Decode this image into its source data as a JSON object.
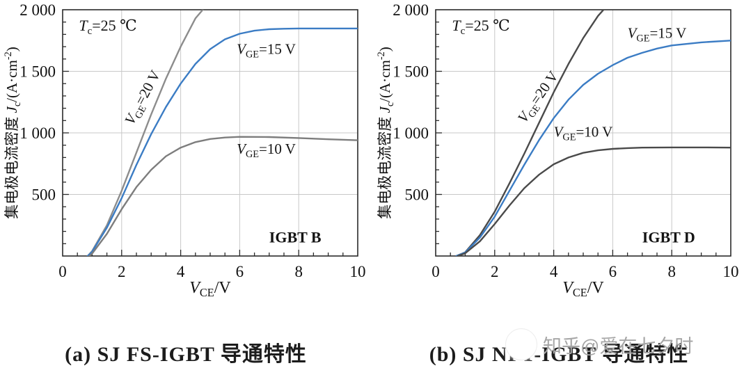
{
  "page": {
    "background": "#ffffff"
  },
  "watermark": {
    "text": "知乎@爱在七夕时",
    "icon": "zhihu-logo-circle",
    "text_color": "#a6a6a6"
  },
  "chart_data": [
    {
      "id": "a",
      "type": "line",
      "caption": "(a) SJ FS-IGBT 导通特性",
      "xlabel": "$V$_{CE}/V",
      "ylabel": "集电极电流密度 $J$_{c}/(A·cm^{-2})",
      "xlim": [
        0,
        10
      ],
      "ylim": [
        0,
        2000
      ],
      "x_ticks": {
        "values": [
          0,
          2,
          4,
          6,
          8,
          10
        ],
        "labels": [
          "0",
          "2",
          "4",
          "6",
          "8",
          "10"
        ]
      },
      "y_ticks": {
        "values": [
          500,
          1000,
          1500,
          2000
        ],
        "labels": [
          "500",
          "1 000",
          "1 500",
          "2 000"
        ]
      },
      "x_minor_step": 0.5,
      "y_minor_step": 100,
      "grid": true,
      "grid_color": "#c8c8c8",
      "frame_color": "#2a2a2a",
      "series": [
        {
          "key": "vge20",
          "name": "V_GE=20 V",
          "color": "#8c8c8c",
          "points": [
            [
              0.85,
              0
            ],
            [
              1.0,
              40
            ],
            [
              1.5,
              250
            ],
            [
              2.0,
              530
            ],
            [
              2.5,
              840
            ],
            [
              3.0,
              1150
            ],
            [
              3.5,
              1440
            ],
            [
              4.0,
              1700
            ],
            [
              4.5,
              1930
            ],
            [
              4.75,
              2000
            ],
            [
              4.9,
              2060
            ]
          ]
        },
        {
          "key": "vge15",
          "name": "V_GE=15 V",
          "color": "#3b7cc4",
          "points": [
            [
              0.85,
              0
            ],
            [
              1.0,
              35
            ],
            [
              1.5,
              230
            ],
            [
              2.0,
              470
            ],
            [
              2.5,
              740
            ],
            [
              3.0,
              990
            ],
            [
              3.5,
              1210
            ],
            [
              4.0,
              1400
            ],
            [
              4.5,
              1560
            ],
            [
              5.0,
              1680
            ],
            [
              5.5,
              1760
            ],
            [
              6.0,
              1805
            ],
            [
              6.5,
              1830
            ],
            [
              7.0,
              1842
            ],
            [
              7.5,
              1846
            ],
            [
              8.0,
              1848
            ],
            [
              9.0,
              1848
            ],
            [
              10.0,
              1848
            ]
          ]
        },
        {
          "key": "vge10",
          "name": "V_GE=10 V",
          "color": "#7d7d7d",
          "points": [
            [
              0.9,
              0
            ],
            [
              1.0,
              20
            ],
            [
              1.5,
              180
            ],
            [
              2.0,
              380
            ],
            [
              2.5,
              560
            ],
            [
              3.0,
              700
            ],
            [
              3.5,
              810
            ],
            [
              4.0,
              880
            ],
            [
              4.5,
              925
            ],
            [
              5.0,
              950
            ],
            [
              5.5,
              962
            ],
            [
              6.0,
              968
            ],
            [
              7.0,
              966
            ],
            [
              8.0,
              958
            ],
            [
              9.0,
              948
            ],
            [
              10.0,
              940
            ]
          ]
        }
      ],
      "annotations": [
        {
          "name": "temp-label",
          "text": "$T$_{c}=25 ℃",
          "x": 0.55,
          "y": 1830,
          "anchor": "start",
          "size": 22
        },
        {
          "name": "vge20-label",
          "text": "$V$_{GE}=20 V",
          "x": 2.85,
          "y": 1270,
          "anchor": "middle",
          "rotate": -62,
          "size": 21
        },
        {
          "name": "vge15-label",
          "text": "$V$_{GE}=15 V",
          "x": 5.9,
          "y": 1640,
          "anchor": "start",
          "size": 21
        },
        {
          "name": "vge10-label",
          "text": "$V$_{GE}=10 V",
          "x": 5.9,
          "y": 830,
          "anchor": "start",
          "size": 21
        },
        {
          "name": "device-label",
          "text": "IGBT B",
          "x": 7.0,
          "y": 110,
          "anchor": "start",
          "size": 22,
          "bold": true
        }
      ]
    },
    {
      "id": "b",
      "type": "line",
      "caption": "(b) SJ NPT-IGBT 导通特性",
      "xlabel": "$V$_{CE}/V",
      "ylabel": "集电极电流密度 $J$_{c}/(A·cm^{-2})",
      "xlim": [
        0,
        10
      ],
      "ylim": [
        0,
        2000
      ],
      "x_ticks": {
        "values": [
          0,
          2,
          4,
          6,
          8,
          10
        ],
        "labels": [
          "0",
          "2",
          "4",
          "6",
          "8",
          "10"
        ]
      },
      "y_ticks": {
        "values": [
          500,
          1000,
          1500,
          2000
        ],
        "labels": [
          "500",
          "1 000",
          "1 500",
          "2 000"
        ]
      },
      "x_minor_step": 0.5,
      "y_minor_step": 100,
      "grid": true,
      "grid_color": "#c8c8c8",
      "frame_color": "#2a2a2a",
      "series": [
        {
          "key": "vge20",
          "name": "V_GE=20 V",
          "color": "#4a4a4a",
          "points": [
            [
              0.7,
              0
            ],
            [
              1.0,
              30
            ],
            [
              1.5,
              170
            ],
            [
              2.0,
              360
            ],
            [
              2.5,
              590
            ],
            [
              3.0,
              830
            ],
            [
              3.5,
              1080
            ],
            [
              4.0,
              1330
            ],
            [
              4.5,
              1560
            ],
            [
              5.0,
              1770
            ],
            [
              5.5,
              1950
            ],
            [
              5.8,
              2030
            ]
          ]
        },
        {
          "key": "vge15",
          "name": "V_GE=15 V",
          "color": "#3b7cc4",
          "points": [
            [
              0.7,
              0
            ],
            [
              1.0,
              28
            ],
            [
              1.5,
              150
            ],
            [
              2.0,
              320
            ],
            [
              2.5,
              530
            ],
            [
              3.0,
              740
            ],
            [
              3.5,
              940
            ],
            [
              4.0,
              1120
            ],
            [
              4.5,
              1270
            ],
            [
              5.0,
              1390
            ],
            [
              5.5,
              1480
            ],
            [
              6.0,
              1550
            ],
            [
              6.5,
              1610
            ],
            [
              7.0,
              1650
            ],
            [
              7.5,
              1685
            ],
            [
              8.0,
              1710
            ],
            [
              9.0,
              1735
            ],
            [
              10.0,
              1750
            ]
          ]
        },
        {
          "key": "vge10",
          "name": "V_GE=10 V",
          "color": "#4a4a4a",
          "points": [
            [
              0.75,
              0
            ],
            [
              1.0,
              22
            ],
            [
              1.5,
              120
            ],
            [
              2.0,
              260
            ],
            [
              2.5,
              410
            ],
            [
              3.0,
              550
            ],
            [
              3.5,
              660
            ],
            [
              4.0,
              745
            ],
            [
              4.5,
              800
            ],
            [
              5.0,
              838
            ],
            [
              5.5,
              858
            ],
            [
              6.0,
              870
            ],
            [
              6.5,
              876
            ],
            [
              7.0,
              880
            ],
            [
              8.0,
              882
            ],
            [
              9.0,
              882
            ],
            [
              10.0,
              880
            ]
          ]
        }
      ],
      "annotations": [
        {
          "name": "temp-label",
          "text": "$T$_{c}=25 ℃",
          "x": 0.55,
          "y": 1830,
          "anchor": "start",
          "size": 22
        },
        {
          "name": "vge20-label",
          "text": "$V$_{GE}=20 V",
          "x": 3.6,
          "y": 1270,
          "anchor": "middle",
          "rotate": -55,
          "size": 21
        },
        {
          "name": "vge15-label",
          "text": "$V$_{GE}=15 V",
          "x": 6.5,
          "y": 1770,
          "anchor": "start",
          "size": 21
        },
        {
          "name": "vge10-label",
          "text": "$V$_{GE}=10 V",
          "x": 4.0,
          "y": 970,
          "anchor": "start",
          "size": 21
        },
        {
          "name": "device-label",
          "text": "IGBT D",
          "x": 7.0,
          "y": 110,
          "anchor": "start",
          "size": 22,
          "bold": true
        }
      ]
    }
  ]
}
